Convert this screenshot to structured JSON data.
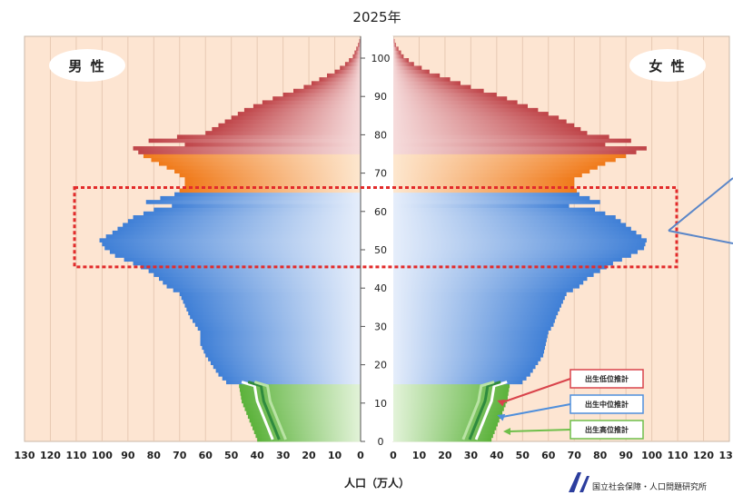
{
  "chart_data": {
    "type": "bar",
    "subtype": "population-pyramid",
    "title": "2025年",
    "xlabel": "人口（万人）",
    "male_label": "男 性",
    "female_label": "女 性",
    "x_ticks": [
      130,
      120,
      110,
      100,
      90,
      80,
      70,
      60,
      50,
      40,
      30,
      20,
      10,
      0
    ],
    "x_max": 130,
    "age_ticks": [
      0,
      10,
      20,
      30,
      40,
      50,
      60,
      70,
      80,
      90,
      100
    ],
    "age_max": 105,
    "highlight_ages": [
      46,
      66
    ],
    "age_groups": [
      {
        "from": 0,
        "to": 15,
        "color": "#6fbf4a"
      },
      {
        "from": 15,
        "to": 65,
        "color": "#4f8fdc"
      },
      {
        "from": 65,
        "to": 75,
        "color": "#f08c2a"
      },
      {
        "from": 75,
        "to": 106,
        "color": "#c8565a"
      }
    ],
    "male": [
      {
        "age": 0,
        "v": 40
      },
      {
        "age": 5,
        "v": 43
      },
      {
        "age": 10,
        "v": 46
      },
      {
        "age": 14,
        "v": 47
      },
      {
        "age": 15,
        "v": 52
      },
      {
        "age": 17,
        "v": 55
      },
      {
        "age": 20,
        "v": 58
      },
      {
        "age": 22,
        "v": 60
      },
      {
        "age": 25,
        "v": 62
      },
      {
        "age": 28,
        "v": 62
      },
      {
        "age": 30,
        "v": 64
      },
      {
        "age": 32,
        "v": 66
      },
      {
        "age": 35,
        "v": 68
      },
      {
        "age": 38,
        "v": 70
      },
      {
        "age": 40,
        "v": 75
      },
      {
        "age": 42,
        "v": 78
      },
      {
        "age": 44,
        "v": 82
      },
      {
        "age": 46,
        "v": 88
      },
      {
        "age": 48,
        "v": 95
      },
      {
        "age": 50,
        "v": 99
      },
      {
        "age": 52,
        "v": 101
      },
      {
        "age": 54,
        "v": 96
      },
      {
        "age": 56,
        "v": 92
      },
      {
        "age": 58,
        "v": 88
      },
      {
        "age": 60,
        "v": 80
      },
      {
        "age": 61,
        "v": 73
      },
      {
        "age": 62,
        "v": 83
      },
      {
        "age": 64,
        "v": 72
      },
      {
        "age": 66,
        "v": 68
      },
      {
        "age": 68,
        "v": 68
      },
      {
        "age": 70,
        "v": 72
      },
      {
        "age": 72,
        "v": 78
      },
      {
        "age": 74,
        "v": 84
      },
      {
        "age": 76,
        "v": 88
      },
      {
        "age": 77,
        "v": 68
      },
      {
        "age": 78,
        "v": 82
      },
      {
        "age": 80,
        "v": 60
      },
      {
        "age": 82,
        "v": 55
      },
      {
        "age": 84,
        "v": 50
      },
      {
        "age": 86,
        "v": 45
      },
      {
        "age": 88,
        "v": 38
      },
      {
        "age": 90,
        "v": 30
      },
      {
        "age": 92,
        "v": 22
      },
      {
        "age": 94,
        "v": 16
      },
      {
        "age": 96,
        "v": 10
      },
      {
        "age": 98,
        "v": 6
      },
      {
        "age": 100,
        "v": 3
      },
      {
        "age": 103,
        "v": 1
      },
      {
        "age": 105,
        "v": 0
      }
    ],
    "female": [
      {
        "age": 0,
        "v": 38
      },
      {
        "age": 5,
        "v": 41
      },
      {
        "age": 10,
        "v": 44
      },
      {
        "age": 14,
        "v": 45
      },
      {
        "age": 15,
        "v": 50
      },
      {
        "age": 17,
        "v": 53
      },
      {
        "age": 20,
        "v": 56
      },
      {
        "age": 22,
        "v": 58
      },
      {
        "age": 25,
        "v": 59
      },
      {
        "age": 28,
        "v": 60
      },
      {
        "age": 30,
        "v": 62
      },
      {
        "age": 32,
        "v": 63
      },
      {
        "age": 35,
        "v": 65
      },
      {
        "age": 38,
        "v": 67
      },
      {
        "age": 40,
        "v": 72
      },
      {
        "age": 42,
        "v": 75
      },
      {
        "age": 44,
        "v": 80
      },
      {
        "age": 46,
        "v": 85
      },
      {
        "age": 48,
        "v": 92
      },
      {
        "age": 50,
        "v": 97
      },
      {
        "age": 52,
        "v": 98
      },
      {
        "age": 54,
        "v": 94
      },
      {
        "age": 56,
        "v": 90
      },
      {
        "age": 58,
        "v": 86
      },
      {
        "age": 60,
        "v": 78
      },
      {
        "age": 61,
        "v": 68
      },
      {
        "age": 62,
        "v": 80
      },
      {
        "age": 64,
        "v": 72
      },
      {
        "age": 66,
        "v": 70
      },
      {
        "age": 68,
        "v": 70
      },
      {
        "age": 70,
        "v": 76
      },
      {
        "age": 72,
        "v": 82
      },
      {
        "age": 74,
        "v": 90
      },
      {
        "age": 76,
        "v": 98
      },
      {
        "age": 77,
        "v": 82
      },
      {
        "age": 78,
        "v": 92
      },
      {
        "age": 80,
        "v": 75
      },
      {
        "age": 82,
        "v": 70
      },
      {
        "age": 84,
        "v": 64
      },
      {
        "age": 86,
        "v": 56
      },
      {
        "age": 88,
        "v": 48
      },
      {
        "age": 90,
        "v": 40
      },
      {
        "age": 92,
        "v": 30
      },
      {
        "age": 94,
        "v": 22
      },
      {
        "age": 96,
        "v": 14
      },
      {
        "age": 98,
        "v": 8
      },
      {
        "age": 100,
        "v": 4
      },
      {
        "age": 103,
        "v": 1
      },
      {
        "age": 105,
        "v": 0
      }
    ],
    "projection_legend": [
      {
        "label": "出生低位推計",
        "color": "#d9434b"
      },
      {
        "label": "出生中位推計",
        "color": "#4f8fdc"
      },
      {
        "label": "出生高位推計",
        "color": "#6fbf4a"
      }
    ],
    "credit": "国立社会保障・人口問題研究所"
  }
}
